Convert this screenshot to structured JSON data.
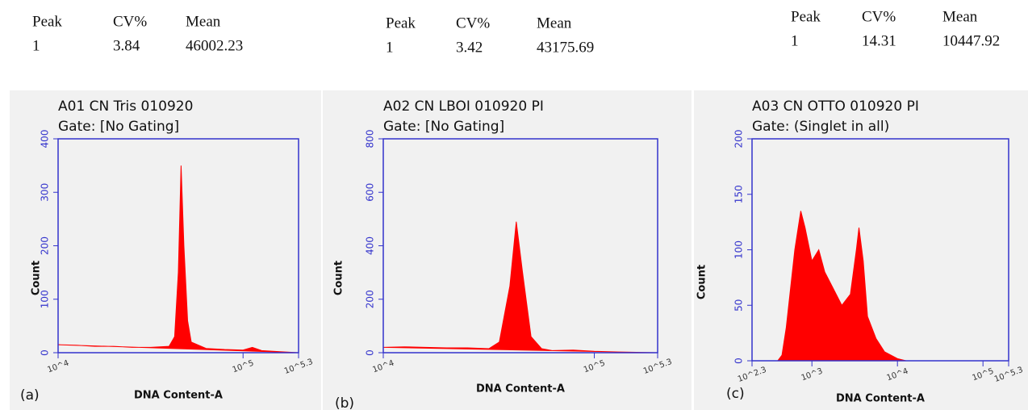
{
  "chart_data": [
    {
      "type": "area",
      "panel_label": "(a)",
      "title": "A01 CN Tris 010920",
      "subtitle": "Gate: [No Gating]",
      "stats": {
        "headers": [
          "Peak",
          "CV%",
          "Mean"
        ],
        "row": [
          "1",
          "3.84",
          "46002.23"
        ]
      },
      "x_label": "DNA Content-A",
      "y_label": "Count",
      "xscale": "log",
      "color": "#ff0000",
      "axis_color": "#3333cc",
      "xlim": [
        10000,
        199526
      ],
      "xticks": [
        {
          "value": 10000,
          "label": "10^4"
        },
        {
          "value": 100000,
          "label": "10^5"
        },
        {
          "value": 199526,
          "label": "10^5.3"
        }
      ],
      "ylim": [
        0,
        400
      ],
      "yticks": [
        0,
        100,
        200,
        300,
        400
      ],
      "x": [
        10000,
        12589,
        15849,
        19953,
        25119,
        31623,
        39811,
        42658,
        44668,
        46238,
        47863,
        50119,
        52481,
        63096,
        79433,
        100000,
        112202,
        125893,
        158489,
        199526
      ],
      "values": [
        15,
        14,
        12,
        12,
        10,
        10,
        12,
        30,
        150,
        350,
        200,
        60,
        20,
        8,
        6,
        5,
        10,
        4,
        2,
        0
      ]
    },
    {
      "type": "area",
      "panel_label": "(b)",
      "title": "A02 CN LBOI 010920 PI",
      "subtitle": "Gate: [No Gating]",
      "stats": {
        "headers": [
          "Peak",
          "CV%",
          "Mean"
        ],
        "row": [
          "1",
          "3.42",
          "43175.69"
        ]
      },
      "x_label": "DNA Content-A",
      "y_label": "Count",
      "xscale": "log",
      "color": "#ff0000",
      "axis_color": "#3333cc",
      "xlim": [
        10000,
        199526
      ],
      "xticks": [
        {
          "value": 10000,
          "label": "10^4"
        },
        {
          "value": 100000,
          "label": "10^5"
        },
        {
          "value": 199526,
          "label": "10^5.3"
        }
      ],
      "ylim": [
        0,
        800
      ],
      "yticks": [
        0,
        200,
        400,
        600,
        800
      ],
      "x": [
        10000,
        12589,
        15849,
        19953,
        25119,
        31623,
        35481,
        39811,
        42658,
        45709,
        50119,
        56234,
        63096,
        79433,
        100000,
        125893,
        158489,
        199526
      ],
      "values": [
        20,
        22,
        20,
        18,
        18,
        15,
        40,
        250,
        490,
        300,
        60,
        15,
        8,
        10,
        5,
        3,
        1,
        0
      ]
    },
    {
      "type": "area",
      "panel_label": "(c)",
      "title": "A03 CN OTTO 010920 PI",
      "subtitle": "Gate: (Singlet in all)",
      "stats": {
        "headers": [
          "Peak",
          "CV%",
          "Mean"
        ],
        "row": [
          "1",
          "14.31",
          "10447.92"
        ]
      },
      "x_label": "DNA Content-A",
      "y_label": "Count",
      "xscale": "log",
      "color": "#ff0000",
      "axis_color": "#3333cc",
      "xlim": [
        199.5,
        199526
      ],
      "xticks": [
        {
          "value": 199.5,
          "label": "10^2.3"
        },
        {
          "value": 1000,
          "label": "10^3"
        },
        {
          "value": 10000,
          "label": "10^4"
        },
        {
          "value": 100000,
          "label": "10^5"
        },
        {
          "value": 199526,
          "label": "10^5.3"
        }
      ],
      "ylim": [
        0,
        200
      ],
      "yticks": [
        0,
        50,
        100,
        150,
        200
      ],
      "x": [
        398,
        447,
        501,
        631,
        741,
        832,
        1000,
        1202,
        1413,
        1778,
        2239,
        2818,
        3311,
        3548,
        3981,
        4467,
        5623,
        7079,
        10000,
        12589
      ],
      "values": [
        0,
        5,
        30,
        100,
        135,
        120,
        90,
        100,
        80,
        65,
        50,
        60,
        100,
        120,
        90,
        40,
        20,
        8,
        2,
        0
      ]
    }
  ]
}
